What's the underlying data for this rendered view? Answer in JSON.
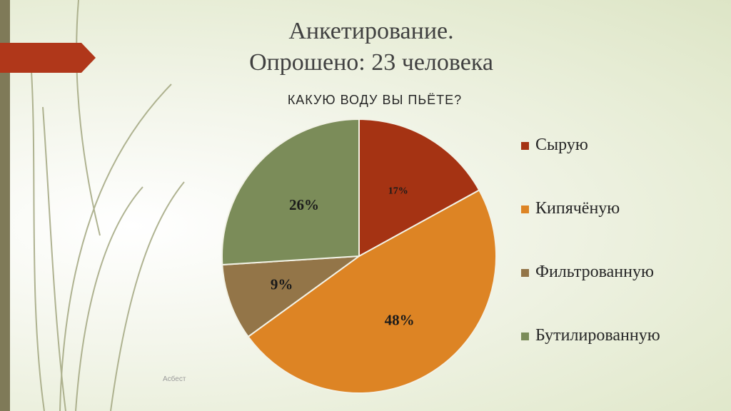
{
  "slide": {
    "title_line1": "Анкетирование.",
    "title_line2": "Опрошено: 23 человека",
    "watermark": "Асбест"
  },
  "colors": {
    "stripe": "#7f7a58",
    "tab": "#b0371a",
    "decor_lines": "#a7ab86"
  },
  "chart_data": {
    "type": "pie",
    "title": "КАКУЮ ВОДУ ВЫ ПЬЁТЕ?",
    "categories": [
      "Сырую",
      "Кипячёную",
      "Фильтрованную",
      "Бутилированную"
    ],
    "values": [
      17,
      48,
      9,
      26
    ],
    "labels": [
      "17%",
      "48%",
      "9%",
      "26%"
    ],
    "colors": [
      "#a53313",
      "#dd8424",
      "#937548",
      "#7b8c59"
    ],
    "legend_position": "right"
  }
}
